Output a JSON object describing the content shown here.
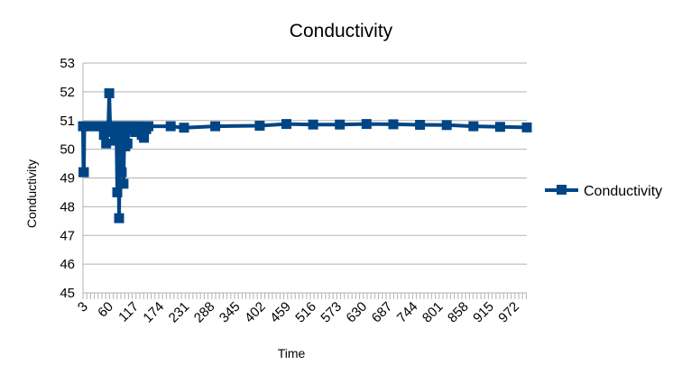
{
  "chart_data": {
    "type": "line",
    "title": "Conductivity",
    "xlabel": "Time",
    "ylabel": "Conductivity",
    "ylim": [
      45,
      53
    ],
    "yticks": [
      45,
      46,
      47,
      48,
      49,
      50,
      51,
      52,
      53
    ],
    "xlim": [
      3,
      1000
    ],
    "xticks": [
      3,
      60,
      117,
      174,
      231,
      288,
      345,
      402,
      459,
      516,
      573,
      630,
      687,
      744,
      801,
      858,
      915,
      972
    ],
    "grid": {
      "horizontal": true,
      "vertical": false
    },
    "legend_position": "right",
    "colors": {
      "series": "#004586",
      "grid": "#b3b3b3",
      "axis": "#b3b3b3"
    },
    "series": [
      {
        "name": "Conductivity",
        "marker": "square",
        "points": [
          [
            3,
            50.8
          ],
          [
            4,
            49.2
          ],
          [
            5,
            49.2
          ],
          [
            6,
            50.8
          ],
          [
            10,
            50.8
          ],
          [
            20,
            50.8
          ],
          [
            30,
            50.8
          ],
          [
            40,
            50.8
          ],
          [
            45,
            50.8
          ],
          [
            50,
            50.5
          ],
          [
            52,
            50.8
          ],
          [
            55,
            50.2
          ],
          [
            57,
            50.8
          ],
          [
            60,
            50.8
          ],
          [
            62,
            51.95
          ],
          [
            64,
            50.8
          ],
          [
            68,
            50.6
          ],
          [
            72,
            50.8
          ],
          [
            75,
            50.3
          ],
          [
            78,
            50.8
          ],
          [
            80,
            48.5
          ],
          [
            82,
            50.8
          ],
          [
            84,
            47.6
          ],
          [
            86,
            50.4
          ],
          [
            88,
            50.8
          ],
          [
            90,
            49.2
          ],
          [
            92,
            50.8
          ],
          [
            94,
            48.8
          ],
          [
            96,
            50.6
          ],
          [
            98,
            50.1
          ],
          [
            100,
            50.8
          ],
          [
            103,
            50.2
          ],
          [
            106,
            50.8
          ],
          [
            110,
            50.8
          ],
          [
            115,
            50.7
          ],
          [
            120,
            50.6
          ],
          [
            125,
            50.8
          ],
          [
            130,
            50.8
          ],
          [
            135,
            50.5
          ],
          [
            140,
            50.4
          ],
          [
            145,
            50.7
          ],
          [
            150,
            50.8
          ],
          [
            200,
            50.8
          ],
          [
            230,
            50.75
          ],
          [
            300,
            50.8
          ],
          [
            400,
            50.82
          ],
          [
            460,
            50.88
          ],
          [
            520,
            50.86
          ],
          [
            580,
            50.86
          ],
          [
            640,
            50.88
          ],
          [
            700,
            50.87
          ],
          [
            760,
            50.85
          ],
          [
            820,
            50.84
          ],
          [
            880,
            50.8
          ],
          [
            940,
            50.78
          ],
          [
            1000,
            50.76
          ]
        ]
      }
    ]
  }
}
